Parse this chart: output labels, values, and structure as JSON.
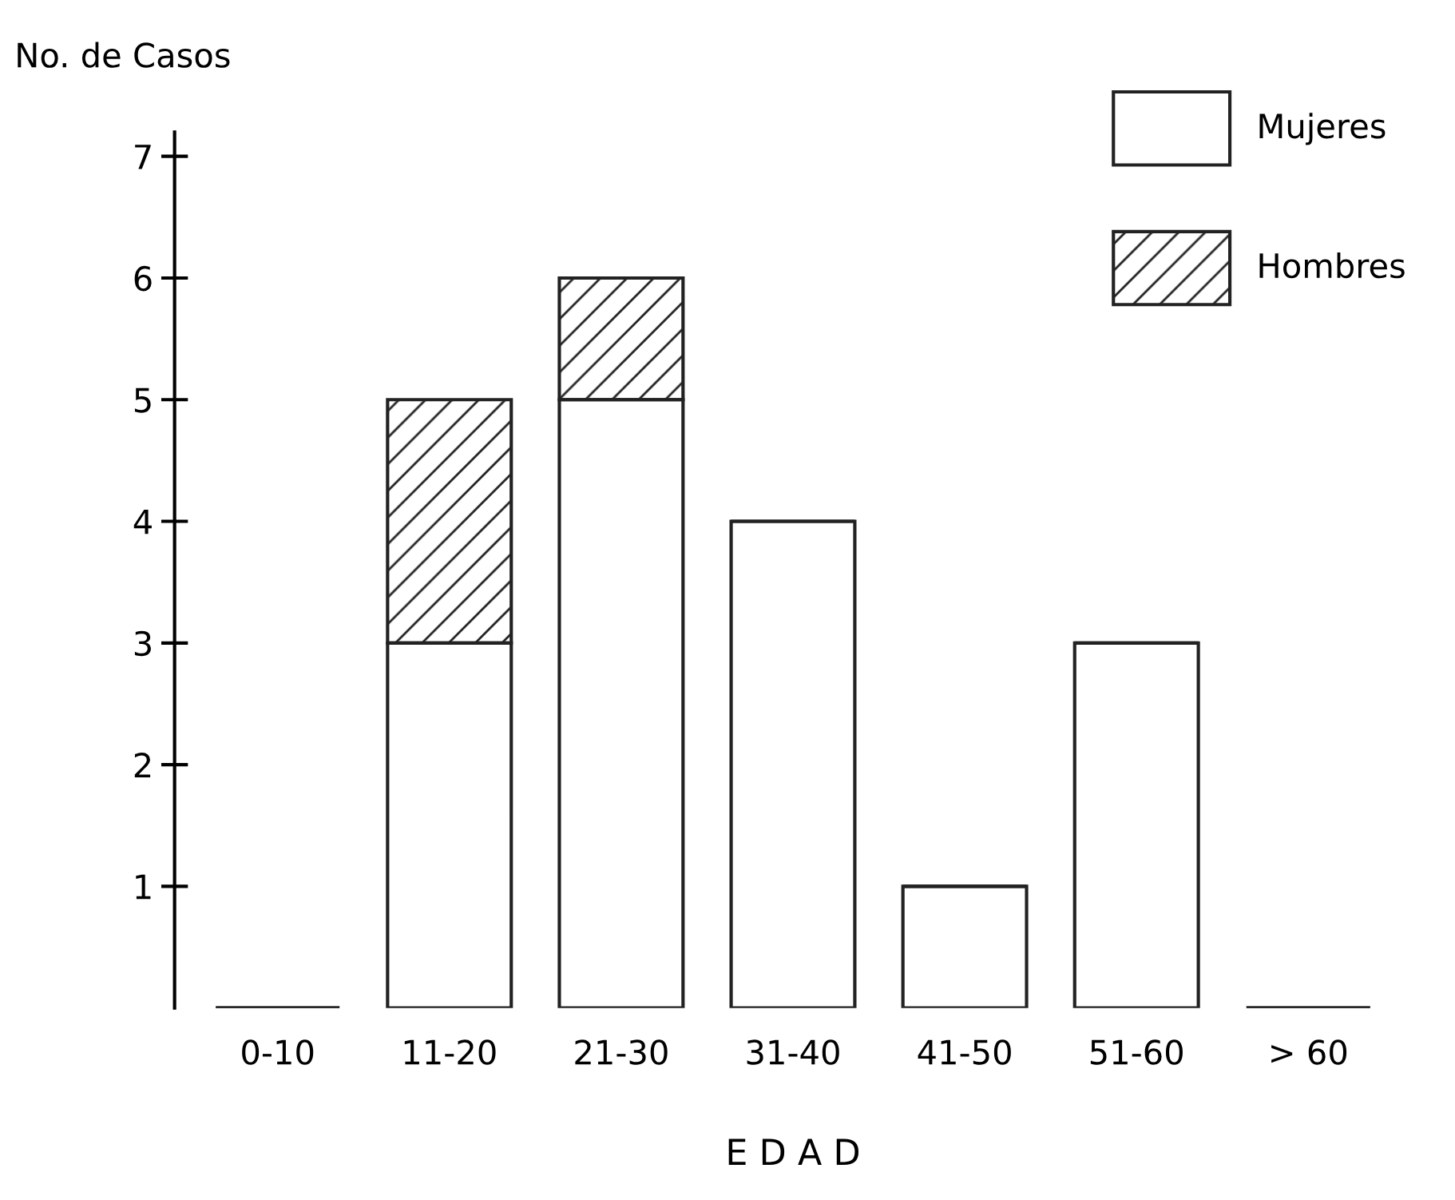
{
  "chart_data": {
    "type": "bar",
    "stacked": true,
    "xlabel": "E D A D",
    "ylabel": "No. de Casos",
    "categories": [
      "0-10",
      "11-20",
      "21-30",
      "31-40",
      "41-50",
      "51-60",
      "> 60"
    ],
    "series": [
      {
        "name": "Mujeres",
        "color": "#ffffff",
        "values": [
          0,
          3,
          5,
          4,
          1,
          3,
          0
        ]
      },
      {
        "name": "Hombres",
        "color": "#222222",
        "values": [
          0,
          2,
          1,
          0,
          0,
          0,
          0
        ]
      }
    ],
    "ylim": [
      0,
      7.2
    ],
    "yticks": [
      1,
      2,
      3,
      4,
      5,
      6,
      7
    ],
    "grid": false,
    "legend": "top right"
  }
}
